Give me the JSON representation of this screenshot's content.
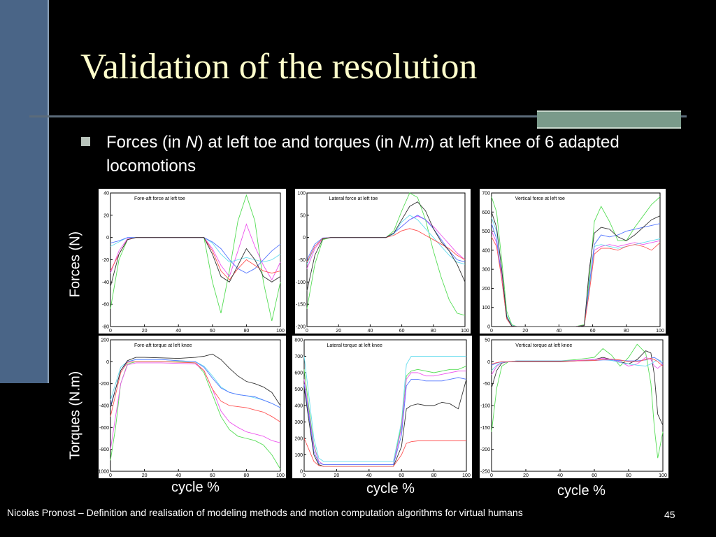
{
  "slide": {
    "title": "Validation of the resolution",
    "bullet_pre_1": "Forces (in ",
    "bullet_unit_1": "N",
    "bullet_mid": ") at left toe and torques (in ",
    "bullet_unit_2": "N.m",
    "bullet_post": ") at left knee of 6 adapted locomotions",
    "row_label_forces": "Forces (N)",
    "row_label_torques": "Torques (N.m)",
    "col_label": "cycle %",
    "footer": "Nicolas Pronost – Definition and realisation of modeling methods and motion computation algorithms for virtual humans",
    "page_number": "45"
  },
  "colors": {
    "background": "#000000",
    "title": "#ffffcc",
    "accent_bar": "#4a6587"
  },
  "chart_data": [
    {
      "type": "line",
      "title": "Fore-aft force at left toe",
      "xlim": [
        0,
        100
      ],
      "ylim": [
        -80,
        40
      ],
      "xticks": [
        0,
        20,
        40,
        60,
        80,
        100
      ],
      "yticks": [
        40,
        20,
        0,
        -20,
        -40,
        -60,
        -80
      ],
      "x": [
        0,
        5,
        10,
        15,
        20,
        30,
        40,
        50,
        55,
        60,
        65,
        70,
        75,
        80,
        85,
        90,
        95,
        100
      ],
      "series": [
        {
          "color": "#55dd55",
          "values": [
            -64,
            -20,
            -2,
            0,
            0,
            0,
            0,
            0,
            0,
            -40,
            -68,
            -30,
            15,
            38,
            15,
            -40,
            -75,
            -40
          ]
        },
        {
          "color": "#ee55ee",
          "values": [
            -32,
            -12,
            -1,
            0,
            0,
            0,
            0,
            0,
            0,
            -10,
            -25,
            -35,
            -12,
            12,
            -8,
            -25,
            -38,
            -22
          ]
        },
        {
          "color": "#66ddee",
          "values": [
            -8,
            -4,
            0,
            0,
            0,
            0,
            0,
            0,
            0,
            -5,
            -15,
            -22,
            -20,
            -18,
            -20,
            -22,
            -20,
            -15
          ]
        },
        {
          "color": "#5577ff",
          "values": [
            -5,
            -3,
            0,
            0,
            0,
            0,
            0,
            0,
            0,
            -4,
            -10,
            -20,
            -28,
            -32,
            -28,
            -20,
            -12,
            -6
          ]
        },
        {
          "color": "#ff5555",
          "values": [
            -30,
            -15,
            -2,
            0,
            0,
            0,
            0,
            0,
            0,
            -12,
            -30,
            -38,
            -28,
            -20,
            -25,
            -30,
            -32,
            -30
          ]
        },
        {
          "color": "#333333",
          "values": [
            -44,
            -15,
            -2,
            0,
            0,
            0,
            0,
            0,
            0,
            -15,
            -35,
            -40,
            -25,
            -10,
            -20,
            -35,
            -40,
            -35
          ]
        }
      ]
    },
    {
      "type": "line",
      "title": "Lateral force at left toe",
      "xlim": [
        0,
        100
      ],
      "ylim": [
        -200,
        100
      ],
      "xticks": [
        0,
        20,
        40,
        60,
        80,
        100
      ],
      "yticks": [
        100,
        50,
        0,
        -50,
        -100,
        -150,
        -200
      ],
      "x": [
        0,
        5,
        10,
        15,
        20,
        30,
        40,
        50,
        55,
        60,
        65,
        70,
        75,
        80,
        85,
        90,
        95,
        100
      ],
      "series": [
        {
          "color": "#55dd55",
          "values": [
            -160,
            -60,
            -5,
            0,
            0,
            0,
            0,
            0,
            15,
            60,
            100,
            90,
            40,
            -30,
            -90,
            -140,
            -170,
            -175
          ]
        },
        {
          "color": "#ee55ee",
          "values": [
            -70,
            -25,
            -2,
            0,
            0,
            0,
            0,
            0,
            10,
            25,
            40,
            48,
            40,
            25,
            5,
            -15,
            -35,
            -50
          ]
        },
        {
          "color": "#66ddee",
          "values": [
            -60,
            -20,
            -2,
            0,
            0,
            0,
            0,
            0,
            8,
            35,
            50,
            40,
            20,
            0,
            -20,
            -40,
            -55,
            -60
          ]
        },
        {
          "color": "#5577ff",
          "values": [
            -50,
            -15,
            -1,
            0,
            0,
            0,
            0,
            0,
            10,
            25,
            40,
            50,
            40,
            20,
            -5,
            -30,
            -50,
            -55
          ]
        },
        {
          "color": "#ff5555",
          "values": [
            -55,
            -20,
            -2,
            0,
            0,
            0,
            0,
            0,
            5,
            15,
            20,
            15,
            5,
            -5,
            -15,
            -25,
            -40,
            -50
          ]
        },
        {
          "color": "#333333",
          "values": [
            -120,
            -40,
            -3,
            0,
            0,
            0,
            0,
            0,
            10,
            40,
            70,
            80,
            60,
            20,
            -10,
            -30,
            -60,
            -100
          ]
        }
      ]
    },
    {
      "type": "line",
      "title": "Vertical force at left toe",
      "xlim": [
        0,
        100
      ],
      "ylim": [
        0,
        700
      ],
      "xticks": [
        0,
        20,
        40,
        60,
        80,
        100
      ],
      "yticks": [
        700,
        600,
        500,
        400,
        300,
        200,
        100,
        0
      ],
      "x": [
        0,
        3,
        6,
        9,
        12,
        15,
        20,
        30,
        40,
        50,
        55,
        58,
        61,
        65,
        70,
        75,
        80,
        85,
        90,
        95,
        100
      ],
      "series": [
        {
          "color": "#55dd55",
          "values": [
            680,
            600,
            350,
            80,
            10,
            0,
            0,
            0,
            0,
            0,
            10,
            250,
            550,
            630,
            550,
            450,
            450,
            520,
            580,
            640,
            680
          ]
        },
        {
          "color": "#ee55ee",
          "values": [
            500,
            440,
            280,
            60,
            5,
            0,
            0,
            0,
            0,
            0,
            5,
            200,
            400,
            420,
            430,
            420,
            430,
            440,
            430,
            440,
            450
          ]
        },
        {
          "color": "#66ddee",
          "values": [
            570,
            500,
            300,
            60,
            5,
            0,
            0,
            0,
            0,
            0,
            5,
            200,
            420,
            430,
            420,
            410,
            420,
            430,
            440,
            450,
            460
          ]
        },
        {
          "color": "#5577ff",
          "values": [
            540,
            460,
            250,
            40,
            2,
            0,
            0,
            0,
            0,
            0,
            5,
            220,
            430,
            480,
            470,
            480,
            500,
            510,
            520,
            530,
            540
          ]
        },
        {
          "color": "#ff5555",
          "values": [
            470,
            420,
            250,
            40,
            2,
            0,
            0,
            0,
            0,
            0,
            5,
            180,
            380,
            410,
            410,
            400,
            420,
            430,
            420,
            400,
            440
          ]
        },
        {
          "color": "#333333",
          "values": [
            600,
            520,
            300,
            50,
            3,
            0,
            0,
            0,
            0,
            0,
            5,
            300,
            490,
            520,
            510,
            470,
            450,
            480,
            520,
            560,
            580
          ]
        }
      ]
    },
    {
      "type": "line",
      "title": "Fore-aft torque at left knee",
      "xlim": [
        0,
        100
      ],
      "ylim": [
        -1000,
        200
      ],
      "xticks": [
        0,
        20,
        40,
        60,
        80,
        100
      ],
      "yticks": [
        200,
        0,
        -200,
        -400,
        -600,
        -800,
        -1000
      ],
      "x": [
        0,
        3,
        6,
        10,
        15,
        20,
        30,
        40,
        50,
        55,
        60,
        65,
        70,
        75,
        80,
        85,
        90,
        95,
        100
      ],
      "series": [
        {
          "color": "#55dd55",
          "values": [
            -900,
            -600,
            -200,
            -20,
            0,
            0,
            0,
            0,
            -10,
            -100,
            -300,
            -500,
            -620,
            -680,
            -700,
            -720,
            -760,
            -850,
            -980
          ]
        },
        {
          "color": "#ee55ee",
          "values": [
            -800,
            -500,
            -200,
            -30,
            -10,
            -10,
            -10,
            -15,
            -20,
            -80,
            -250,
            -450,
            -550,
            -600,
            -640,
            -660,
            -680,
            -720,
            -740
          ]
        },
        {
          "color": "#66ddee",
          "values": [
            -350,
            -200,
            -50,
            0,
            20,
            20,
            20,
            10,
            0,
            -40,
            -130,
            -230,
            -280,
            -300,
            -310,
            -330,
            -350,
            -380,
            -420
          ]
        },
        {
          "color": "#5577ff",
          "values": [
            -400,
            -250,
            -80,
            0,
            20,
            20,
            20,
            10,
            0,
            -50,
            -150,
            -240,
            -280,
            -300,
            -310,
            -320,
            -350,
            -380,
            -420
          ]
        },
        {
          "color": "#ff5555",
          "values": [
            -500,
            -300,
            -100,
            -5,
            0,
            0,
            0,
            -5,
            -10,
            -80,
            -250,
            -360,
            -400,
            -410,
            -420,
            -440,
            -460,
            -500,
            -550
          ]
        },
        {
          "color": "#333333",
          "values": [
            -420,
            -250,
            -80,
            10,
            40,
            40,
            35,
            30,
            40,
            50,
            70,
            20,
            -60,
            -130,
            -180,
            -200,
            -230,
            -280,
            -400
          ]
        }
      ]
    },
    {
      "type": "line",
      "title": "Lateral torque at left knee",
      "xlim": [
        0,
        100
      ],
      "ylim": [
        0,
        800
      ],
      "xticks": [
        0,
        20,
        40,
        60,
        80,
        100
      ],
      "yticks": [
        800,
        700,
        600,
        500,
        400,
        300,
        200,
        100,
        0
      ],
      "x": [
        0,
        3,
        6,
        9,
        12,
        15,
        20,
        30,
        40,
        50,
        55,
        60,
        63,
        66,
        70,
        75,
        80,
        85,
        90,
        95,
        100
      ],
      "series": [
        {
          "color": "#66ddee",
          "values": [
            700,
            450,
            200,
            80,
            60,
            60,
            60,
            60,
            60,
            60,
            60,
            300,
            650,
            700,
            700,
            700,
            700,
            700,
            700,
            700,
            700
          ]
        },
        {
          "color": "#55dd55",
          "values": [
            620,
            380,
            160,
            60,
            40,
            40,
            40,
            40,
            40,
            40,
            40,
            280,
            580,
            610,
            620,
            610,
            600,
            610,
            620,
            620,
            640
          ]
        },
        {
          "color": "#ee55ee",
          "values": [
            560,
            350,
            150,
            60,
            40,
            40,
            40,
            40,
            40,
            40,
            40,
            260,
            560,
            600,
            600,
            580,
            580,
            590,
            600,
            610,
            610
          ]
        },
        {
          "color": "#5577ff",
          "values": [
            530,
            330,
            120,
            50,
            40,
            40,
            40,
            40,
            40,
            40,
            40,
            220,
            520,
            560,
            560,
            550,
            550,
            550,
            560,
            570,
            560
          ]
        },
        {
          "color": "#333333",
          "values": [
            510,
            300,
            100,
            40,
            30,
            30,
            30,
            30,
            30,
            30,
            30,
            150,
            380,
            400,
            410,
            400,
            400,
            420,
            410,
            380,
            560
          ]
        },
        {
          "color": "#ff5555",
          "values": [
            200,
            130,
            60,
            35,
            30,
            30,
            30,
            30,
            30,
            30,
            30,
            100,
            170,
            180,
            185,
            185,
            185,
            185,
            185,
            185,
            185
          ]
        }
      ]
    },
    {
      "type": "line",
      "title": "Vertical torque at left knee",
      "xlim": [
        0,
        100
      ],
      "ylim": [
        -250,
        50
      ],
      "xticks": [
        0,
        20,
        40,
        60,
        80,
        100
      ],
      "yticks": [
        50,
        0,
        -50,
        -100,
        -150,
        -200,
        -250
      ],
      "x": [
        0,
        3,
        6,
        10,
        15,
        20,
        30,
        40,
        50,
        60,
        65,
        70,
        75,
        80,
        85,
        90,
        93,
        95,
        97,
        100
      ],
      "series": [
        {
          "color": "#55dd55",
          "values": [
            -160,
            -60,
            -10,
            0,
            2,
            2,
            2,
            2,
            5,
            10,
            30,
            15,
            -10,
            10,
            40,
            20,
            -50,
            -150,
            -220,
            -160
          ]
        },
        {
          "color": "#333333",
          "values": [
            -60,
            -20,
            -3,
            0,
            0,
            0,
            0,
            0,
            2,
            5,
            10,
            5,
            0,
            -5,
            5,
            25,
            20,
            -30,
            -120,
            -145
          ]
        },
        {
          "color": "#ee55ee",
          "values": [
            -30,
            -10,
            -2,
            0,
            2,
            2,
            2,
            2,
            3,
            5,
            8,
            5,
            0,
            -10,
            -5,
            10,
            5,
            -10,
            -15,
            -5
          ]
        },
        {
          "color": "#66ddee",
          "values": [
            -20,
            -8,
            -1,
            0,
            2,
            2,
            2,
            2,
            2,
            3,
            5,
            3,
            -2,
            -5,
            -8,
            -10,
            -5,
            0,
            5,
            0
          ]
        },
        {
          "color": "#5577ff",
          "values": [
            -8,
            -3,
            0,
            0,
            1,
            1,
            1,
            1,
            2,
            3,
            4,
            4,
            3,
            2,
            2,
            4,
            8,
            10,
            5,
            -5
          ]
        },
        {
          "color": "#ff5555",
          "values": [
            -5,
            -2,
            0,
            0,
            1,
            1,
            1,
            1,
            2,
            3,
            5,
            6,
            4,
            0,
            0,
            5,
            8,
            5,
            0,
            -10
          ]
        }
      ]
    }
  ]
}
